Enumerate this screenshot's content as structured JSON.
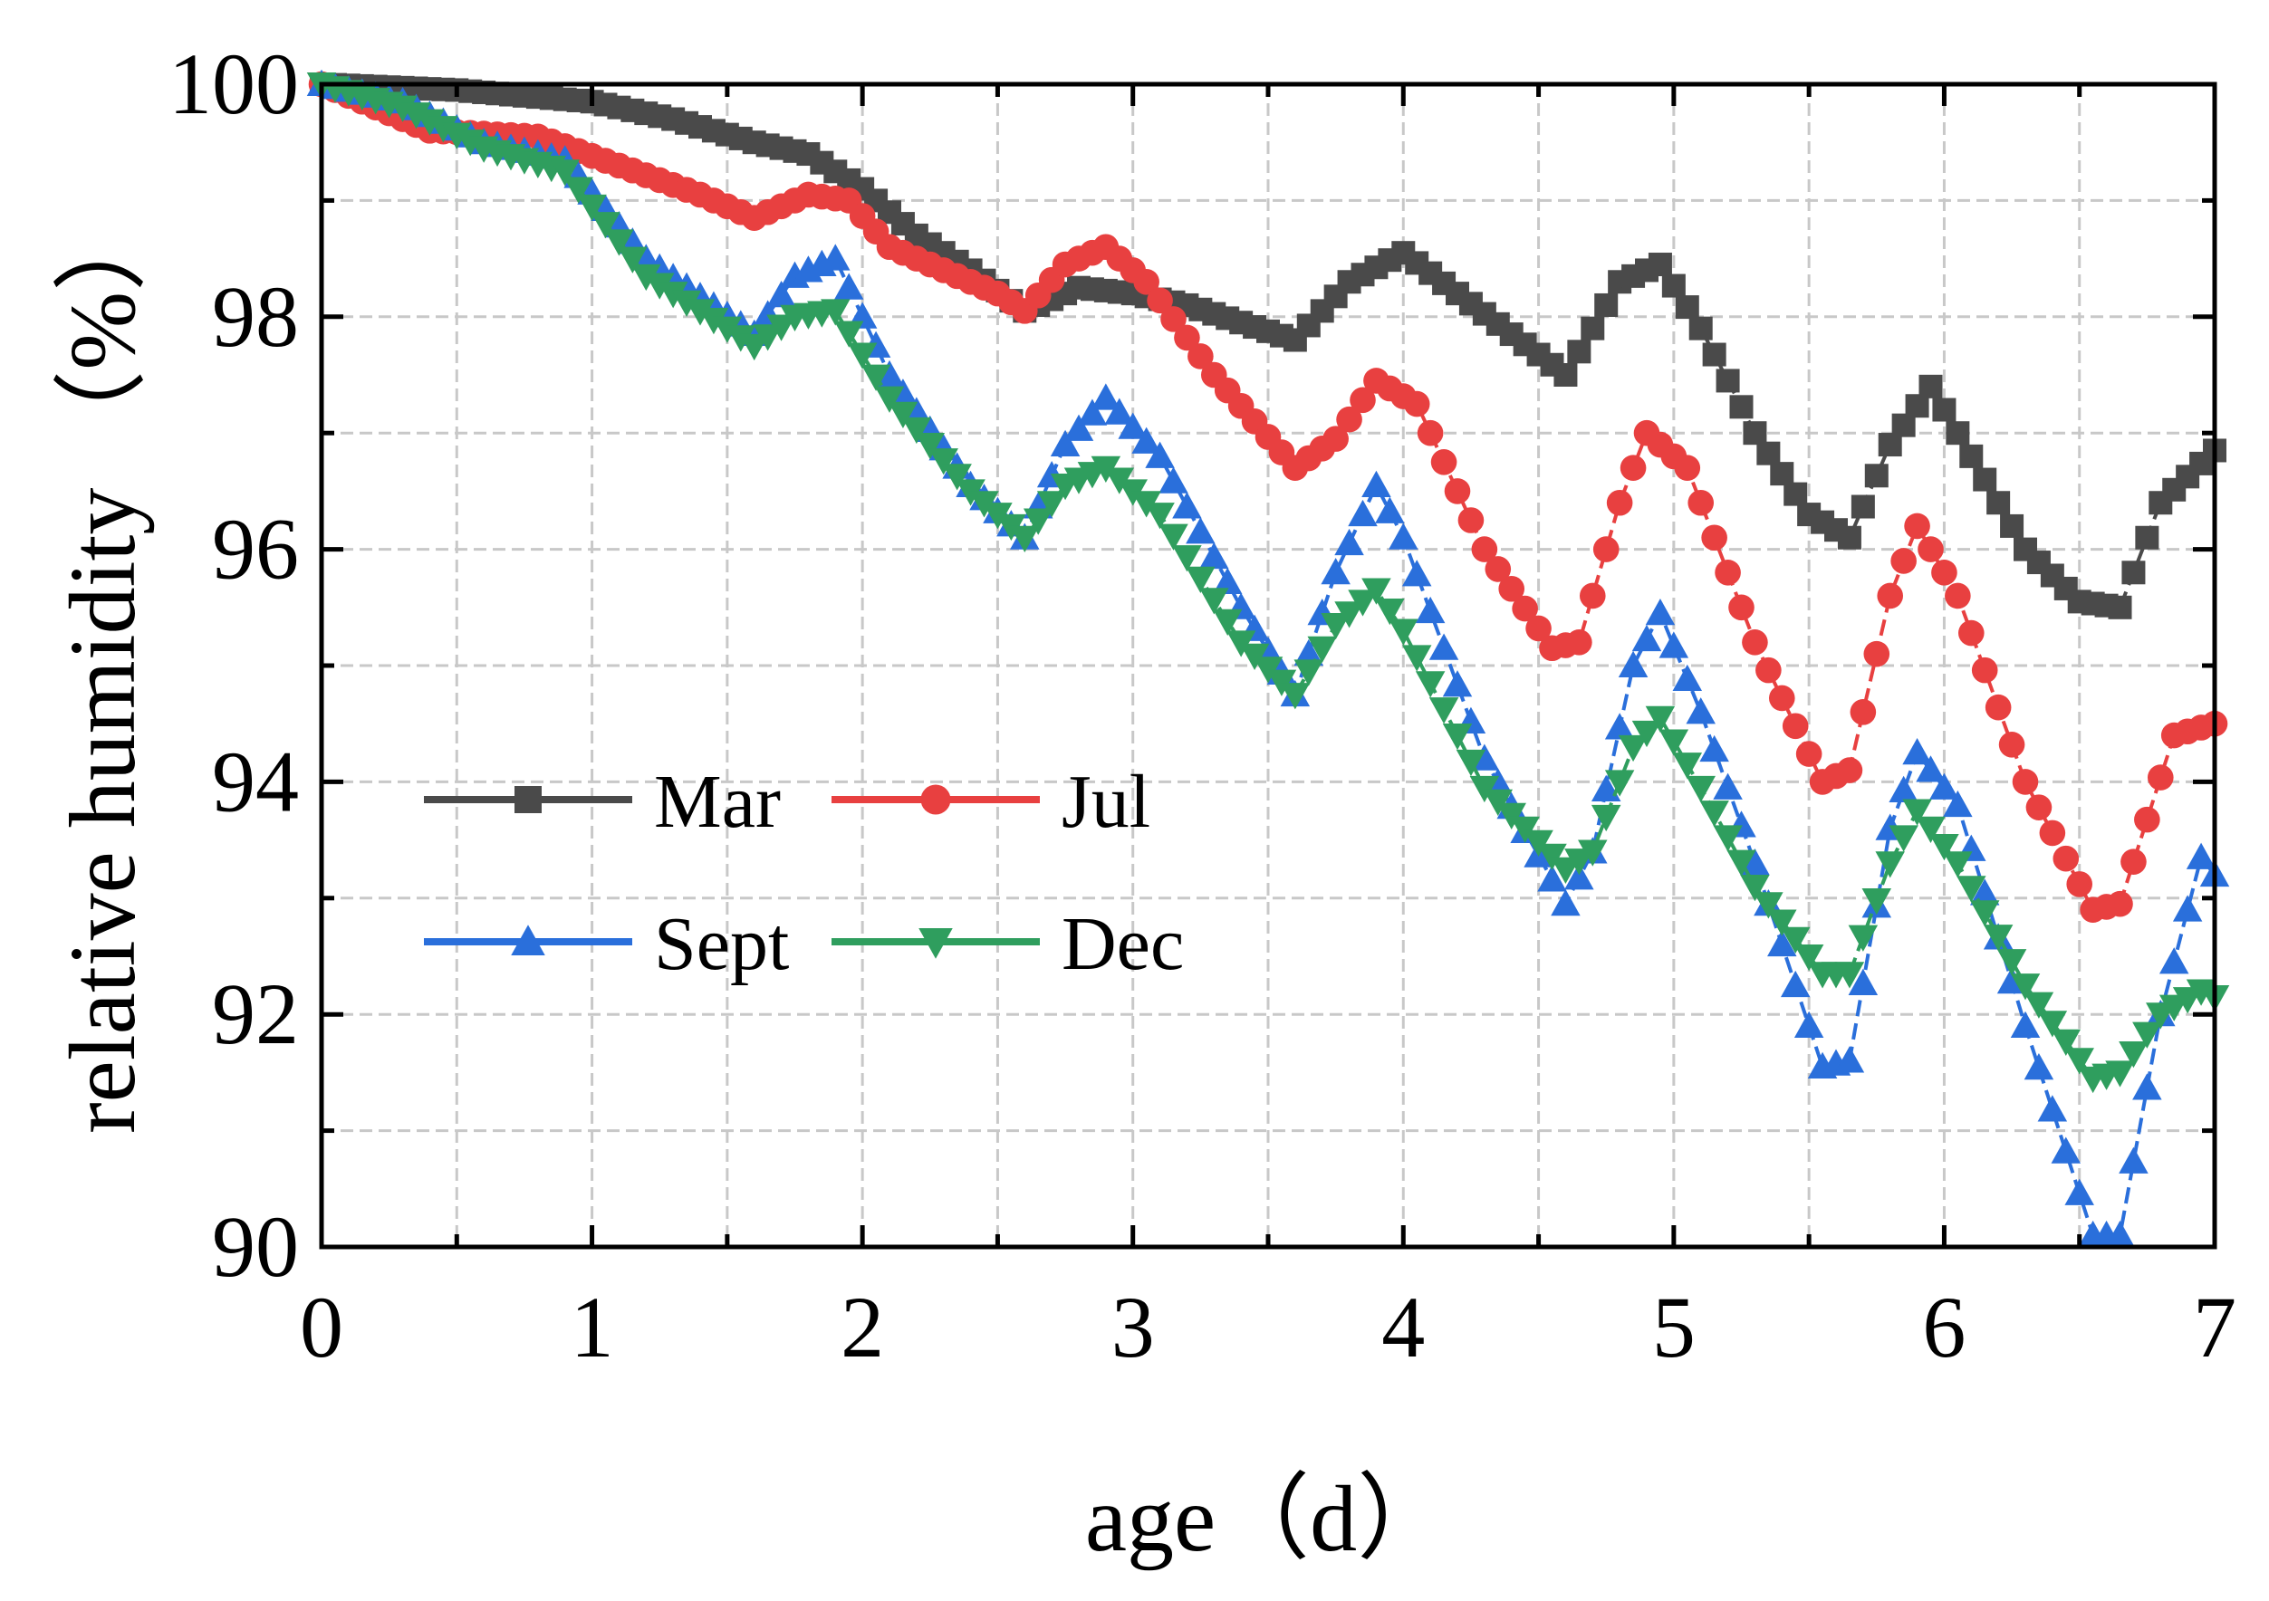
{
  "chart_data": {
    "type": "line",
    "title": "",
    "xlabel": "age（d）",
    "ylabel": "relative humidity （%）",
    "xlim": [
      0,
      7
    ],
    "ylim": [
      90,
      100
    ],
    "xticks": [
      "0",
      "1",
      "2",
      "3",
      "4",
      "5",
      "6",
      "7"
    ],
    "yticks": [
      "90",
      "92",
      "94",
      "96",
      "98",
      "100"
    ],
    "grid": true,
    "legend_position": "lower-left",
    "series": [
      {
        "name": "Mar",
        "color": "#4a4a4a",
        "marker": "square",
        "x": [
          0,
          0.5,
          1.0,
          1.3,
          1.6,
          1.8,
          2.0,
          2.2,
          2.4,
          2.6,
          2.8,
          3.0,
          3.2,
          3.4,
          3.6,
          3.8,
          4.0,
          4.2,
          4.4,
          4.6,
          4.8,
          4.95,
          5.1,
          5.3,
          5.5,
          5.65,
          5.8,
          5.95,
          6.1,
          6.3,
          6.5,
          6.65,
          6.8,
          7.0
        ],
        "y": [
          100.0,
          99.95,
          99.85,
          99.7,
          99.5,
          99.4,
          99.1,
          98.7,
          98.4,
          98.05,
          98.25,
          98.2,
          98.1,
          97.95,
          97.8,
          98.3,
          98.55,
          98.2,
          97.85,
          97.5,
          98.3,
          98.45,
          97.9,
          97.0,
          96.3,
          96.1,
          96.9,
          97.4,
          96.8,
          96.0,
          95.55,
          95.5,
          96.4,
          96.85
        ]
      },
      {
        "name": "Jul",
        "color": "#e84040",
        "marker": "circle",
        "x": [
          0,
          0.4,
          0.8,
          1.1,
          1.4,
          1.6,
          1.8,
          1.95,
          2.1,
          2.3,
          2.5,
          2.6,
          2.75,
          2.9,
          3.05,
          3.3,
          3.6,
          3.75,
          3.9,
          4.05,
          4.3,
          4.55,
          4.65,
          4.8,
          4.9,
          5.05,
          5.3,
          5.55,
          5.65,
          5.8,
          5.9,
          6.05,
          6.3,
          6.55,
          6.65,
          6.85,
          7.0
        ],
        "y": [
          100.0,
          99.6,
          99.55,
          99.3,
          99.05,
          98.85,
          99.05,
          99.0,
          98.6,
          98.4,
          98.2,
          98.05,
          98.45,
          98.6,
          98.3,
          97.5,
          96.7,
          96.95,
          97.45,
          97.25,
          96.0,
          95.15,
          95.2,
          96.4,
          97.0,
          96.7,
          95.2,
          94.0,
          94.1,
          95.6,
          96.2,
          95.6,
          94.0,
          92.9,
          92.95,
          94.4,
          94.5
        ]
      },
      {
        "name": "Sept",
        "color": "#2a6fdb",
        "marker": "triangle-up",
        "x": [
          0,
          0.3,
          0.6,
          0.9,
          1.2,
          1.6,
          1.75,
          1.9,
          2.1,
          2.4,
          2.6,
          2.75,
          2.9,
          3.1,
          3.4,
          3.6,
          3.75,
          3.9,
          4.0,
          4.3,
          4.6,
          4.7,
          4.85,
          4.95,
          5.1,
          5.3,
          5.55,
          5.65,
          5.8,
          5.9,
          6.05,
          6.3,
          6.55,
          6.65,
          6.8,
          6.95,
          7.0
        ],
        "y": [
          100.0,
          99.85,
          99.5,
          99.35,
          98.5,
          97.85,
          98.35,
          98.5,
          97.5,
          96.55,
          96.1,
          96.9,
          97.3,
          96.8,
          95.5,
          94.75,
          95.8,
          96.55,
          96.1,
          94.2,
          92.95,
          93.4,
          95.0,
          95.45,
          94.6,
          93.3,
          91.55,
          91.6,
          93.6,
          94.25,
          93.8,
          91.9,
          90.1,
          90.1,
          92.0,
          93.35,
          93.2
        ]
      },
      {
        "name": "Dec",
        "color": "#2f9e5e",
        "marker": "triangle-down",
        "x": [
          0,
          0.3,
          0.6,
          0.9,
          1.2,
          1.6,
          1.75,
          1.9,
          2.1,
          2.4,
          2.6,
          2.75,
          2.9,
          3.1,
          3.4,
          3.6,
          3.75,
          3.9,
          4.0,
          4.3,
          4.6,
          4.7,
          4.85,
          4.95,
          5.1,
          5.3,
          5.55,
          5.65,
          5.8,
          5.9,
          6.05,
          6.3,
          6.55,
          6.65,
          6.8,
          6.95,
          7.0
        ],
        "y": [
          100.0,
          99.8,
          99.45,
          99.25,
          98.35,
          97.75,
          98.0,
          98.05,
          97.3,
          96.5,
          96.1,
          96.55,
          96.7,
          96.3,
          95.2,
          94.75,
          95.35,
          95.65,
          95.3,
          93.95,
          93.25,
          93.4,
          94.3,
          94.55,
          93.95,
          93.1,
          92.35,
          92.35,
          93.3,
          93.75,
          93.3,
          92.25,
          91.45,
          91.5,
          92.0,
          92.2,
          92.15
        ]
      }
    ]
  }
}
